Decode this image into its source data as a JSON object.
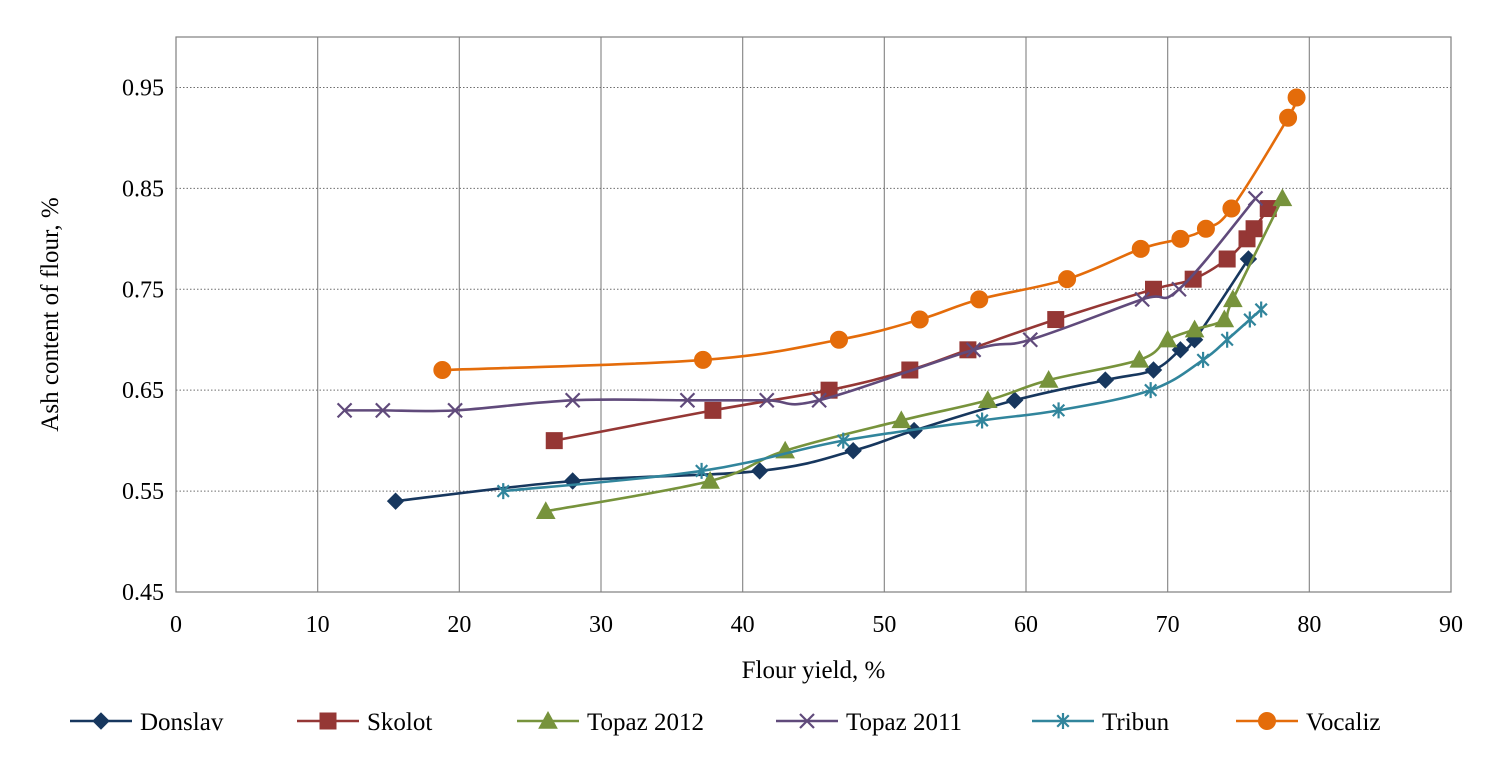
{
  "chart_data": {
    "type": "line",
    "title": "",
    "xlabel": "Flour yield, %",
    "ylabel": "Ash content of flour, %",
    "xlim": [
      0,
      90
    ],
    "ylim": [
      0.45,
      1.0
    ],
    "x_ticks": [
      0,
      10,
      20,
      30,
      40,
      50,
      60,
      70,
      80,
      90
    ],
    "x_tick_labels": [
      "0",
      "10",
      "20",
      "30",
      "40",
      "50",
      "60",
      "70",
      "80",
      "90"
    ],
    "y_ticks": [
      0.45,
      0.55,
      0.65,
      0.75,
      0.85,
      0.95
    ],
    "y_tick_labels": [
      "0.45",
      "0.55",
      "0.65",
      "0.75",
      "0.85",
      "0.95"
    ],
    "grid": {
      "vertical": "solid",
      "horizontal": "dotted"
    },
    "legend_position": "bottom",
    "series": [
      {
        "name": "Donslav",
        "color": "#17375E",
        "marker": "diamond",
        "points": [
          [
            15.5,
            0.54
          ],
          [
            28.0,
            0.56
          ],
          [
            41.2,
            0.57
          ],
          [
            47.8,
            0.59
          ],
          [
            52.1,
            0.61
          ],
          [
            59.2,
            0.64
          ],
          [
            65.6,
            0.66
          ],
          [
            69.0,
            0.67
          ],
          [
            70.9,
            0.69
          ],
          [
            71.9,
            0.7
          ],
          [
            75.7,
            0.78
          ]
        ]
      },
      {
        "name": "Skolot",
        "color": "#953735",
        "marker": "square",
        "points": [
          [
            26.7,
            0.6
          ],
          [
            37.9,
            0.63
          ],
          [
            46.1,
            0.65
          ],
          [
            51.8,
            0.67
          ],
          [
            55.9,
            0.69
          ],
          [
            62.1,
            0.72
          ],
          [
            69.0,
            0.75
          ],
          [
            71.8,
            0.76
          ],
          [
            74.2,
            0.78
          ],
          [
            75.6,
            0.8
          ],
          [
            76.1,
            0.81
          ],
          [
            77.1,
            0.83
          ]
        ]
      },
      {
        "name": "Topaz 2012",
        "color": "#77933C",
        "marker": "triangle",
        "points": [
          [
            26.1,
            0.53
          ],
          [
            37.7,
            0.56
          ],
          [
            43.0,
            0.59
          ],
          [
            51.2,
            0.62
          ],
          [
            57.3,
            0.64
          ],
          [
            61.6,
            0.66
          ],
          [
            68.0,
            0.68
          ],
          [
            70.0,
            0.7
          ],
          [
            71.9,
            0.71
          ],
          [
            74.0,
            0.72
          ],
          [
            74.6,
            0.74
          ],
          [
            78.1,
            0.84
          ]
        ]
      },
      {
        "name": "Topaz 2011",
        "color": "#604A7B",
        "marker": "x",
        "points": [
          [
            11.9,
            0.63
          ],
          [
            14.6,
            0.63
          ],
          [
            19.7,
            0.63
          ],
          [
            28.0,
            0.64
          ],
          [
            36.1,
            0.64
          ],
          [
            41.7,
            0.64
          ],
          [
            45.4,
            0.64
          ],
          [
            56.3,
            0.69
          ],
          [
            60.3,
            0.7
          ],
          [
            68.2,
            0.74
          ],
          [
            70.8,
            0.75
          ],
          [
            76.2,
            0.84
          ]
        ]
      },
      {
        "name": "Tribun",
        "color": "#31859C",
        "marker": "asterisk",
        "points": [
          [
            23.1,
            0.55
          ],
          [
            37.1,
            0.57
          ],
          [
            47.1,
            0.6
          ],
          [
            56.9,
            0.62
          ],
          [
            62.3,
            0.63
          ],
          [
            68.8,
            0.65
          ],
          [
            72.5,
            0.68
          ],
          [
            74.2,
            0.7
          ],
          [
            75.8,
            0.72
          ],
          [
            76.6,
            0.73
          ]
        ]
      },
      {
        "name": "Vocaliz",
        "color": "#E46C0A",
        "marker": "circle",
        "points": [
          [
            18.8,
            0.67
          ],
          [
            37.2,
            0.68
          ],
          [
            46.8,
            0.7
          ],
          [
            52.5,
            0.72
          ],
          [
            56.7,
            0.74
          ],
          [
            62.9,
            0.76
          ],
          [
            68.1,
            0.79
          ],
          [
            70.9,
            0.8
          ],
          [
            72.7,
            0.81
          ],
          [
            74.5,
            0.83
          ],
          [
            78.5,
            0.92
          ],
          [
            79.1,
            0.94
          ]
        ]
      }
    ]
  }
}
